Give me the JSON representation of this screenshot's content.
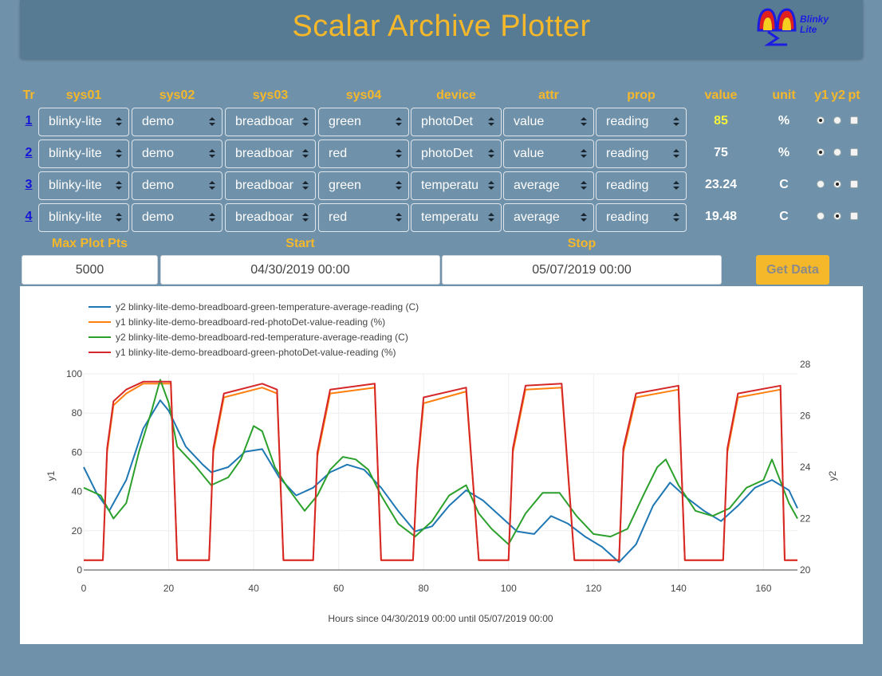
{
  "app": {
    "title": "Scalar Archive Plotter",
    "logo_line1": "Blinky",
    "logo_line2": "Lite"
  },
  "headers": {
    "tr": "Tr",
    "sys01": "sys01",
    "sys02": "sys02",
    "sys03": "sys03",
    "sys04": "sys04",
    "device": "device",
    "attr": "attr",
    "prop": "prop",
    "value": "value",
    "unit": "unit",
    "y1": "y1",
    "y2": "y2",
    "pt": "pt"
  },
  "rows": [
    {
      "tr": "1",
      "sys01": "blinky-lite",
      "sys02": "demo",
      "sys03": "breadboar",
      "sys04": "green",
      "device": "photoDet",
      "attr": "value",
      "prop": "reading",
      "value": "85",
      "unit": "%",
      "axis": "y1"
    },
    {
      "tr": "2",
      "sys01": "blinky-lite",
      "sys02": "demo",
      "sys03": "breadboar",
      "sys04": "red",
      "device": "photoDet",
      "attr": "value",
      "prop": "reading",
      "value": "75",
      "unit": "%",
      "axis": "y1"
    },
    {
      "tr": "3",
      "sys01": "blinky-lite",
      "sys02": "demo",
      "sys03": "breadboar",
      "sys04": "green",
      "device": "temperatu",
      "attr": "average",
      "prop": "reading",
      "value": "23.24",
      "unit": "C",
      "axis": "y2"
    },
    {
      "tr": "4",
      "sys01": "blinky-lite",
      "sys02": "demo",
      "sys03": "breadboar",
      "sys04": "red",
      "device": "temperatu",
      "attr": "average",
      "prop": "reading",
      "value": "19.48",
      "unit": "C",
      "axis": "y2"
    }
  ],
  "controls": {
    "max_plot_pts_label": "Max Plot Pts",
    "max_plot_pts": "5000",
    "start_label": "Start",
    "start": "04/30/2019 00:00",
    "stop_label": "Stop",
    "stop": "05/07/2019 00:00",
    "get_data": "Get Data"
  },
  "colors": {
    "accent": "#f5b82a",
    "background": "#6f91a9",
    "header": "#587b94",
    "value_highlight": "#f6f33a"
  },
  "chart_data": {
    "type": "line",
    "xlabel": "Hours since 04/30/2019 00:00 until 05/07/2019 00:00",
    "ylabel": "y1",
    "y2label": "y2",
    "xlim": [
      0,
      168
    ],
    "ylim": [
      0,
      100
    ],
    "y2lim": [
      20,
      28
    ],
    "x_ticks": [
      0,
      20,
      40,
      60,
      80,
      100,
      120,
      140,
      160
    ],
    "y_ticks": [
      0,
      20,
      40,
      60,
      80,
      100
    ],
    "y2_ticks": [
      20,
      22,
      24,
      26,
      28
    ],
    "grid": true,
    "legend": "top-left",
    "series": [
      {
        "name": "y2 blinky-lite-demo-breadboard-green-temperature-average-reading (C)",
        "axis": "y2",
        "color": "#1f77b4",
        "x": [
          0,
          3,
          6,
          10,
          14,
          18,
          20,
          24,
          28,
          30,
          34,
          38,
          42,
          46,
          50,
          54,
          58,
          62,
          66,
          70,
          74,
          78,
          82,
          86,
          90,
          94,
          98,
          102,
          106,
          110,
          114,
          118,
          122,
          126,
          130,
          134,
          138,
          142,
          146,
          150,
          154,
          158,
          162,
          166,
          168
        ],
        "y": [
          24,
          23,
          22.3,
          23.5,
          25.5,
          26.6,
          26.2,
          24.8,
          24.1,
          23.8,
          24,
          24.6,
          24.7,
          23.6,
          22.9,
          23.2,
          23.8,
          24.1,
          23.9,
          23.2,
          22.3,
          21.5,
          21.7,
          22.5,
          23.1,
          22.7,
          22.1,
          21.5,
          21.4,
          22.1,
          21.8,
          21.3,
          20.9,
          20.3,
          21,
          22.5,
          23.4,
          22.8,
          22.3,
          21.9,
          22.5,
          23.2,
          23.5,
          23.1,
          22.4
        ]
      },
      {
        "name": "y1 blinky-lite-demo-breadboard-red-photoDet-value-reading (%)",
        "axis": "y1",
        "color": "#ff7f0e",
        "x": [
          0,
          4.5,
          5.5,
          7,
          10,
          14,
          20.5,
          22,
          29.5,
          30.5,
          33,
          42,
          45.5,
          47,
          54,
          55,
          58,
          68.5,
          70,
          77.5,
          78.5,
          80,
          90,
          93,
          100,
          101,
          104,
          112.5,
          115.5,
          117,
          126,
          127,
          130,
          140,
          141.5,
          143,
          150.5,
          151.5,
          154,
          164,
          165,
          168
        ],
        "y": [
          5,
          5,
          60,
          84,
          90,
          95,
          95,
          5,
          5,
          60,
          88,
          93,
          90,
          5,
          5,
          58,
          90,
          93,
          5,
          5,
          50,
          85,
          91,
          5,
          5,
          60,
          92,
          93,
          5,
          5,
          5,
          60,
          88,
          92,
          5,
          5,
          5,
          60,
          88,
          92,
          5,
          5
        ]
      },
      {
        "name": "y2 blinky-lite-demo-breadboard-red-temperature-average-reading (C)",
        "axis": "y2",
        "color": "#2ca02c",
        "x": [
          0,
          4,
          7,
          10,
          13,
          16,
          18,
          20,
          22,
          26,
          30,
          34,
          37,
          40,
          42,
          45,
          48,
          52,
          55,
          58,
          61,
          64,
          67,
          70,
          74,
          78,
          82,
          86,
          90,
          93,
          96,
          100,
          104,
          108,
          112,
          116,
          120,
          124,
          128,
          132,
          135,
          137,
          140,
          144,
          148,
          152,
          156,
          160,
          162,
          166,
          168
        ],
        "y": [
          23.2,
          22.9,
          22,
          22.6,
          24.6,
          26.2,
          27.4,
          26.5,
          24.8,
          24.1,
          23.3,
          23.6,
          24.3,
          25.6,
          25.4,
          24,
          23.2,
          22.3,
          22.9,
          23.9,
          24.4,
          24.3,
          23.9,
          22.9,
          21.8,
          21.3,
          21.9,
          22.9,
          23.3,
          22.2,
          21.6,
          21,
          22.2,
          23,
          23,
          22.1,
          21.4,
          21.3,
          21.6,
          23,
          24,
          24.3,
          23.3,
          22.3,
          22.1,
          22.4,
          23.2,
          23.5,
          24.3,
          22.6,
          22
        ]
      },
      {
        "name": "y1 blinky-lite-demo-breadboard-green-photoDet-value-reading (%)",
        "axis": "y1",
        "color": "#d62728",
        "x": [
          0,
          4.5,
          5.5,
          7,
          10,
          14,
          20.5,
          22,
          29.5,
          30.5,
          33,
          42,
          45.5,
          47,
          54,
          55,
          58,
          68.5,
          70,
          77.5,
          78.5,
          80,
          90,
          93,
          100,
          101,
          104,
          112.5,
          115.5,
          117,
          126,
          127,
          130,
          140,
          141.5,
          143,
          150.5,
          151.5,
          154,
          164,
          165,
          168
        ],
        "y": [
          5,
          5,
          62,
          86,
          92,
          96,
          96,
          5,
          5,
          62,
          90,
          95,
          92,
          5,
          5,
          60,
          92,
          95,
          5,
          5,
          52,
          88,
          93,
          5,
          5,
          62,
          94,
          95,
          5,
          5,
          5,
          62,
          90,
          94,
          5,
          5,
          5,
          62,
          90,
          94,
          5,
          5
        ]
      }
    ]
  }
}
